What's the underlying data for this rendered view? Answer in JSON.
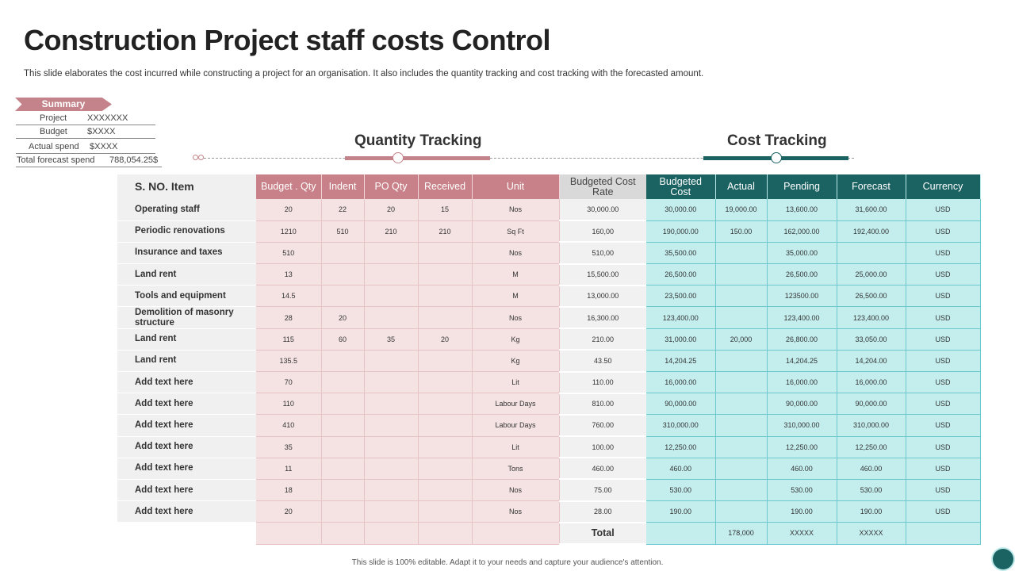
{
  "title": "Construction Project staff costs Control",
  "subtitle": "This slide elaborates the cost incurred while constructing a project for an organisation. It also includes the quantity tracking and cost tracking  with the forecasted amount.",
  "summary": {
    "label": "Summary",
    "rows": [
      {
        "label": "Project",
        "value": "XXXXXXX"
      },
      {
        "label": "Budget",
        "value": "$XXXX"
      },
      {
        "label": "Actual spend",
        "value": "$XXXX"
      },
      {
        "label": "Total forecast spend",
        "value": "788,054.25$"
      }
    ]
  },
  "tracking": {
    "quantity": "Quantity Tracking",
    "cost": "Cost Tracking",
    "colors": {
      "quantity": "#c4838a",
      "cost": "#1b6263"
    }
  },
  "table": {
    "headers": [
      "S. NO. Item",
      "Budget . Qty",
      "Indent",
      "PO Qty",
      "Received",
      "Unit",
      "Budgeted Cost Rate",
      "Budgeted Cost",
      "Actual",
      "Pending",
      "Forecast",
      "Currency"
    ],
    "rows": [
      [
        "Operating staff",
        "20",
        "22",
        "20",
        "15",
        "Nos",
        "30,000.00",
        "30,000.00",
        "19,000.00",
        "13,600.00",
        "31,600.00",
        "USD"
      ],
      [
        "Periodic renovations",
        "1210",
        "510",
        "210",
        "210",
        "Sq Ft",
        "160,00",
        "190,000.00",
        "150.00",
        "162,000.00",
        "192,400.00",
        "USD"
      ],
      [
        "Insurance and taxes",
        "510",
        "",
        "",
        "",
        "Nos",
        "510,00",
        "35,500.00",
        "",
        "35,000.00",
        "",
        "USD"
      ],
      [
        "Land rent",
        "13",
        "",
        "",
        "",
        "M",
        "15,500.00",
        "26,500.00",
        "",
        "26,500.00",
        "25,000.00",
        "USD"
      ],
      [
        "Tools and equipment",
        "14.5",
        "",
        "",
        "",
        "M",
        "13,000.00",
        "23,500.00",
        "",
        "123500.00",
        "26,500.00",
        "USD"
      ],
      [
        "Demolition of masonry structure",
        "28",
        "20",
        "",
        "",
        "Nos",
        "16,300.00",
        "123,400.00",
        "",
        "123,400.00",
        "123,400.00",
        "USD"
      ],
      [
        "Land rent",
        "115",
        "60",
        "35",
        "20",
        "Kg",
        "210.00",
        "31,000.00",
        "20,000",
        "26,800.00",
        "33,050.00",
        "USD"
      ],
      [
        "Land rent",
        "135.5",
        "",
        "",
        "",
        "Kg",
        "43.50",
        "14,204.25",
        "",
        "14,204.25",
        "14,204.00",
        "USD"
      ],
      [
        "Add text here",
        "70",
        "",
        "",
        "",
        "Lit",
        "110.00",
        "16,000.00",
        "",
        "16,000.00",
        "16,000.00",
        "USD"
      ],
      [
        "Add text here",
        "110",
        "",
        "",
        "",
        "Labour Days",
        "810.00",
        "90,000.00",
        "",
        "90,000.00",
        "90,000.00",
        "USD"
      ],
      [
        "Add text here",
        "410",
        "",
        "",
        "",
        "Labour Days",
        "760.00",
        "310,000.00",
        "",
        "310,000.00",
        "310,000.00",
        "USD"
      ],
      [
        "Add text here",
        "35",
        "",
        "",
        "",
        "Lit",
        "100.00",
        "12,250.00",
        "",
        "12,250.00",
        "12,250.00",
        "USD"
      ],
      [
        "Add text here",
        "11",
        "",
        "",
        "",
        "Tons",
        "460.00",
        "460.00",
        "",
        "460.00",
        "460.00",
        "USD"
      ],
      [
        "Add text here",
        "18",
        "",
        "",
        "",
        "Nos",
        "75.00",
        "530.00",
        "",
        "530.00",
        "530.00",
        "USD"
      ],
      [
        "Add text here",
        "20",
        "",
        "",
        "",
        "Nos",
        "28.00",
        "190.00",
        "",
        "190.00",
        "190.00",
        "USD"
      ]
    ],
    "total": {
      "label": "Total",
      "actual": "178,000",
      "pending": "XXXXX",
      "forecast": "XXXXX"
    }
  },
  "footer": "This slide is 100% editable. Adapt it to your needs and capture your audience's attention."
}
